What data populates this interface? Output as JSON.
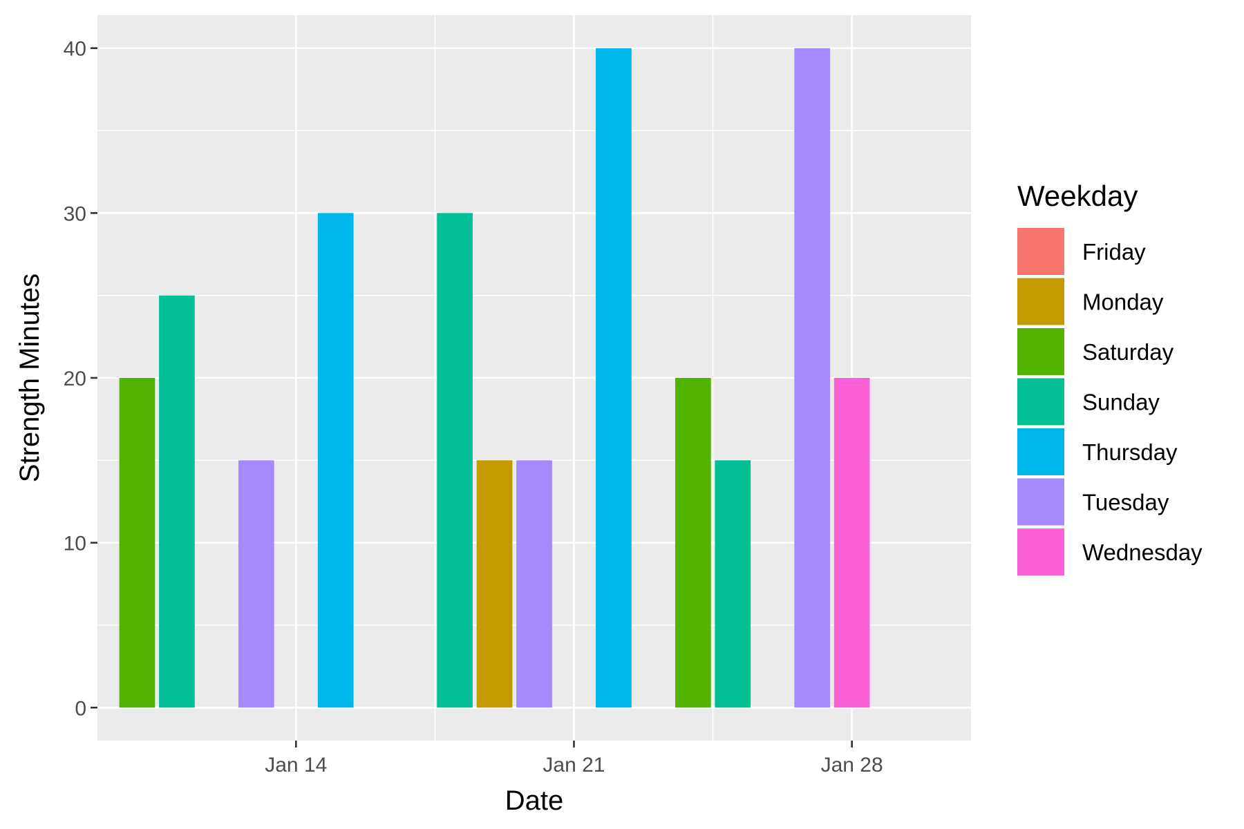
{
  "chart_data": {
    "type": "bar",
    "xlabel": "Date",
    "ylabel": "Strength Minutes",
    "x_ticks": [
      {
        "date": "2024-01-14",
        "label": "Jan 14"
      },
      {
        "date": "2024-01-21",
        "label": "Jan 21"
      },
      {
        "date": "2024-01-28",
        "label": "Jan 28"
      }
    ],
    "y_ticks": [
      0,
      10,
      20,
      30,
      40
    ],
    "xlim": [
      "2024-01-09",
      "2024-01-31"
    ],
    "ylim": [
      -2,
      42
    ],
    "legend": {
      "title": "Weekday",
      "position": "right",
      "entries": [
        {
          "name": "Friday",
          "color": "#F8766D"
        },
        {
          "name": "Monday",
          "color": "#C49A00"
        },
        {
          "name": "Saturday",
          "color": "#53B400"
        },
        {
          "name": "Sunday",
          "color": "#00C094"
        },
        {
          "name": "Thursday",
          "color": "#00B6EB"
        },
        {
          "name": "Tuesday",
          "color": "#A58AFF"
        },
        {
          "name": "Wednesday",
          "color": "#FB61D7"
        }
      ]
    },
    "points": [
      {
        "date": "2024-01-10",
        "value": 20,
        "weekday": "Saturday"
      },
      {
        "date": "2024-01-11",
        "value": 25,
        "weekday": "Sunday"
      },
      {
        "date": "2024-01-13",
        "value": 15,
        "weekday": "Tuesday"
      },
      {
        "date": "2024-01-15",
        "value": 30,
        "weekday": "Thursday"
      },
      {
        "date": "2024-01-18",
        "value": 30,
        "weekday": "Sunday"
      },
      {
        "date": "2024-01-19",
        "value": 15,
        "weekday": "Monday"
      },
      {
        "date": "2024-01-20",
        "value": 15,
        "weekday": "Tuesday"
      },
      {
        "date": "2024-01-22",
        "value": 40,
        "weekday": "Thursday"
      },
      {
        "date": "2024-01-24",
        "value": 20,
        "weekday": "Saturday"
      },
      {
        "date": "2024-01-25",
        "value": 15,
        "weekday": "Sunday"
      },
      {
        "date": "2024-01-27",
        "value": 40,
        "weekday": "Tuesday"
      },
      {
        "date": "2024-01-28",
        "value": 20,
        "weekday": "Wednesday"
      }
    ],
    "grid": true,
    "panel_background": "#EBEBEB",
    "grid_color": "#FFFFFF"
  }
}
